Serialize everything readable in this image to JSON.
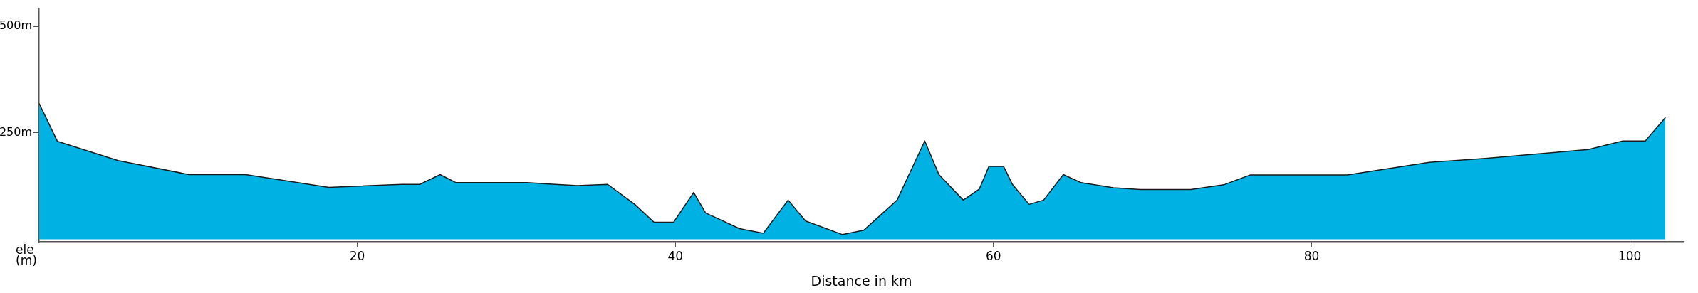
{
  "chart_data": {
    "type": "area",
    "xlabel": "Distance in km",
    "ylabel": "ele (m)",
    "x": [
      0,
      1.15,
      4.96,
      9.42,
      12.98,
      18.21,
      22.78,
      23.93,
      25.21,
      26.21,
      30.67,
      33.84,
      35.74,
      37.45,
      38.66,
      39.89,
      41.15,
      41.9,
      44.03,
      45.53,
      47.09,
      48.19,
      50.51,
      51.84,
      53.94,
      55.68,
      56.57,
      58.1,
      59.11,
      59.71,
      60.64,
      61.19,
      62.24,
      63.15,
      64.39,
      65.51,
      67.54,
      69.23,
      72.41,
      74.48,
      76.13,
      82.25,
      87.4,
      90.93,
      97.4,
      99.56,
      100.98,
      102.25
    ],
    "series": [
      {
        "color": "#00b2e3",
        "values": [
          319,
          230,
          185,
          152,
          152,
          122,
          129,
          129,
          152,
          133,
          133,
          126,
          129,
          82,
          40,
          40,
          110,
          62,
          25,
          14,
          92,
          43,
          11,
          21,
          92,
          231,
          152,
          92,
          118,
          171,
          171,
          129,
          82,
          92,
          152,
          133,
          121,
          117,
          117,
          128,
          151,
          151,
          181,
          190,
          211,
          231,
          231,
          286
        ]
      }
    ],
    "xlim": [
      0,
      103.4
    ],
    "xticks": [
      20,
      40,
      60,
      80,
      100
    ],
    "ylim": [
      -6,
      543
    ],
    "yticks": [
      {
        "value": 250,
        "label": "250m"
      },
      {
        "value": 500,
        "label": "500m"
      }
    ],
    "grid": false,
    "legend": false,
    "marker": "none",
    "line_style": "solid"
  }
}
